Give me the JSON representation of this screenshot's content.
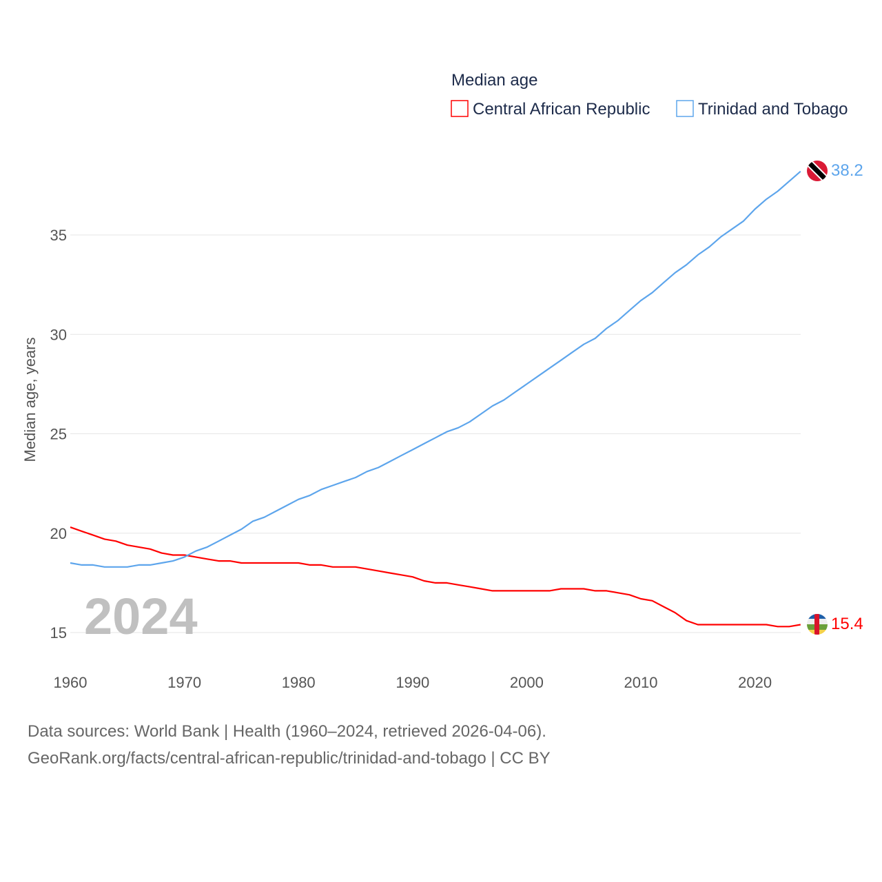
{
  "chart_data": {
    "type": "line",
    "legend_title": "Median age",
    "ylabel": "Median age, years",
    "xlabel": "",
    "year_watermark": "2024",
    "xlim": [
      1960,
      2024
    ],
    "ylim": [
      13.9,
      39
    ],
    "x_ticks": [
      "1960",
      "1970",
      "1980",
      "1990",
      "2000",
      "2010",
      "2020"
    ],
    "y_ticks": [
      "15",
      "20",
      "25",
      "30",
      "35"
    ],
    "grid": true,
    "legend_placement": "top-right",
    "x": [
      1960,
      1961,
      1962,
      1963,
      1964,
      1965,
      1966,
      1967,
      1968,
      1969,
      1970,
      1971,
      1972,
      1973,
      1974,
      1975,
      1976,
      1977,
      1978,
      1979,
      1980,
      1981,
      1982,
      1983,
      1984,
      1985,
      1986,
      1987,
      1988,
      1989,
      1990,
      1991,
      1992,
      1993,
      1994,
      1995,
      1996,
      1997,
      1998,
      1999,
      2000,
      2001,
      2002,
      2003,
      2004,
      2005,
      2006,
      2007,
      2008,
      2009,
      2010,
      2011,
      2012,
      2013,
      2014,
      2015,
      2016,
      2017,
      2018,
      2019,
      2020,
      2021,
      2022,
      2023,
      2024
    ],
    "series": [
      {
        "name": "Central African Republic",
        "color": "#ff0000",
        "end_label": "15.4",
        "values": [
          20.3,
          20.1,
          19.9,
          19.7,
          19.6,
          19.4,
          19.3,
          19.2,
          19.0,
          18.9,
          18.9,
          18.8,
          18.7,
          18.6,
          18.6,
          18.5,
          18.5,
          18.5,
          18.5,
          18.5,
          18.5,
          18.4,
          18.4,
          18.3,
          18.3,
          18.3,
          18.2,
          18.1,
          18.0,
          17.9,
          17.8,
          17.6,
          17.5,
          17.5,
          17.4,
          17.3,
          17.2,
          17.1,
          17.1,
          17.1,
          17.1,
          17.1,
          17.1,
          17.2,
          17.2,
          17.2,
          17.1,
          17.1,
          17.0,
          16.9,
          16.7,
          16.6,
          16.3,
          16.0,
          15.6,
          15.4,
          15.4,
          15.4,
          15.4,
          15.4,
          15.4,
          15.4,
          15.3,
          15.3,
          15.4
        ]
      },
      {
        "name": "Trinidad and Tobago",
        "color": "#5da5ec",
        "end_label": "38.2",
        "values": [
          18.5,
          18.4,
          18.4,
          18.3,
          18.3,
          18.3,
          18.4,
          18.4,
          18.5,
          18.6,
          18.8,
          19.1,
          19.3,
          19.6,
          19.9,
          20.2,
          20.6,
          20.8,
          21.1,
          21.4,
          21.7,
          21.9,
          22.2,
          22.4,
          22.6,
          22.8,
          23.1,
          23.3,
          23.6,
          23.9,
          24.2,
          24.5,
          24.8,
          25.1,
          25.3,
          25.6,
          26.0,
          26.4,
          26.7,
          27.1,
          27.5,
          27.9,
          28.3,
          28.7,
          29.1,
          29.5,
          29.8,
          30.3,
          30.7,
          31.2,
          31.7,
          32.1,
          32.6,
          33.1,
          33.5,
          34.0,
          34.4,
          34.9,
          35.3,
          35.7,
          36.3,
          36.8,
          37.2,
          37.7,
          38.2
        ]
      }
    ]
  },
  "footer": {
    "line1": "Data sources: World Bank | Health (1960–2024, retrieved 2026-04-06).",
    "line2": "GeoRank.org/facts/central-african-republic/trinidad-and-tobago | CC BY"
  }
}
